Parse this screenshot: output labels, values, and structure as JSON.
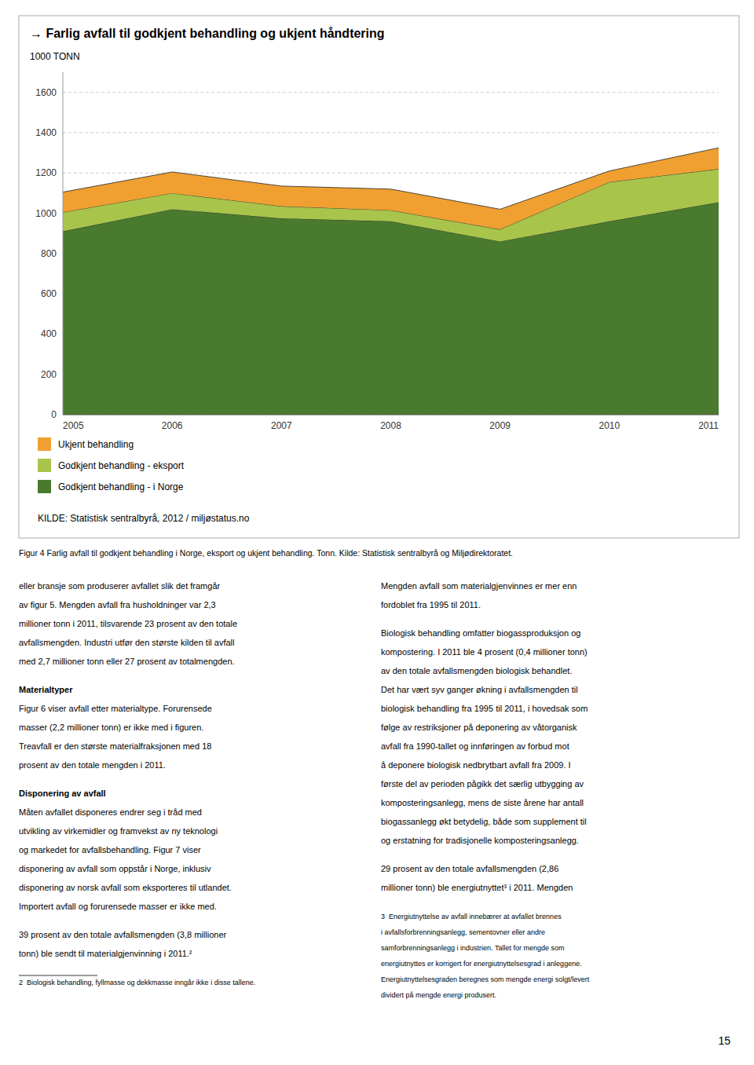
{
  "chart_data": {
    "type": "area",
    "stacked": true,
    "title": "→ Farlig avfall til godkjent behandling og ukjent håndtering",
    "y_label": "1000 TONN",
    "x": [
      2005,
      2006,
      2007,
      2008,
      2009,
      2010,
      2011
    ],
    "series": [
      {
        "name": "Godkjent behandling - i Norge",
        "color": "#4a7a2e",
        "values": [
          910,
          1020,
          975,
          960,
          860,
          960,
          1055
        ]
      },
      {
        "name": "Godkjent behandling - eksport",
        "color": "#a8c44a",
        "values": [
          95,
          80,
          60,
          55,
          60,
          195,
          165
        ]
      },
      {
        "name": "Ukjent behandling",
        "color": "#f0a030",
        "values": [
          100,
          105,
          100,
          105,
          100,
          55,
          105
        ]
      }
    ],
    "xlim": [
      2005,
      2011
    ],
    "xticks": [
      2005,
      2006,
      2007,
      2008,
      2009,
      2010,
      2011
    ],
    "ylim": [
      0,
      1700
    ],
    "yticks": [
      0,
      200,
      400,
      600,
      800,
      1000,
      1200,
      1400,
      1600
    ],
    "grid": true,
    "legend": "bottom",
    "source": "KILDE: Statistisk sentralbyrå, 2012 / miljøstatus.no",
    "caption": "Figur 4 Farlig avfall til godkjent behandling i Norge, eksport og ukjent behandling. Tonn. Kilde: Statistisk sentralbyrå og Miljødirektoratet."
  },
  "body_text": {
    "left": [
      {
        "lines": [
          "eller bransje som produserer avfallet slik det framgår",
          "av figur 5. Mengden avfall fra husholdninger var 2,3",
          "millioner tonn i 2011, tilsvarende 23 prosent av den totale",
          "avfallsmengden. Industri utfør den største kilden til avfall",
          "med 2,7 millioner tonn eller 27 prosent av totalmengden."
        ]
      },
      {
        "heading": "Materialtyper",
        "lines": [
          "Figur 6 viser avfall etter materialtype. Forurensede",
          "masser (2,2 millioner tonn) er ikke med i figuren.",
          "Treavfall er den største materialfraksjonen med 18",
          "prosent av den totale mengden i 2011."
        ]
      },
      {
        "heading": "Disponering av avfall",
        "lines": [
          "Måten avfallet disponeres endrer seg i tråd med",
          "utvikling av virkemidler og framvekst av ny teknologi",
          "og markedet for avfallsbehandling. Figur 7 viser",
          "disponering av avfall som oppstår i Norge, inklusiv",
          "disponering av norsk avfall som eksporteres til utlandet.",
          "Importert avfall og forurensede masser er ikke med."
        ]
      },
      {
        "lines": [
          "39 prosent av den totale avfallsmengden (3,8 millioner",
          "tonn) ble sendt til materialgjenvinning i 2011.²"
        ]
      },
      {
        "footnote": [
          "2  Biologisk behandling, fyllmasse og dekkmasse inngår ikke i disse tallene."
        ]
      }
    ],
    "right": [
      {
        "lines": [
          "Mengden avfall som materialgjenvinnes er mer enn",
          "fordoblet fra 1995 til 2011."
        ]
      },
      {
        "lines": [
          "Biologisk behandling omfatter biogassproduksjon og",
          "kompostering. I 2011 ble 4 prosent (0,4 millioner tonn)",
          "av den totale avfallsmengden biologisk behandlet.",
          "Det har vært syv ganger økning i avfallsmengden til",
          "biologisk behandling fra 1995 til 2011, i hovedsak som",
          "følge av restriksjoner på deponering av våtorganisk",
          "avfall fra 1990-tallet og innføringen av forbud mot",
          "å deponere biologisk nedbrytbart avfall fra 2009. I",
          "første del av perioden pågikk det særlig utbygging av",
          "komposteringsanlegg, mens de siste årene har antall",
          "biogassanlegg økt betydelig, både som supplement til",
          "og erstatning for tradisjonelle komposteringsanlegg."
        ]
      },
      {
        "lines": [
          "29 prosent av den totale avfallsmengden (2,86",
          "millioner tonn) ble energiutnyttet³ i 2011. Mengden"
        ]
      },
      {
        "footnote": [
          "3  Energiutnyttelse av avfall innebærer at avfallet brennes",
          "i avfallsforbrenningsanlegg, sementovner eller andre",
          "samforbrenningsanlegg i industrien. Tallet for mengde som",
          "energiutnyttes er korrigert for energiutnyttelsesgrad i anleggene.",
          "Energiutnyttelsesgraden beregnes som mengde energi solgt/levert",
          "dividert på mengde energi produsert."
        ]
      }
    ]
  },
  "page_number": "15"
}
